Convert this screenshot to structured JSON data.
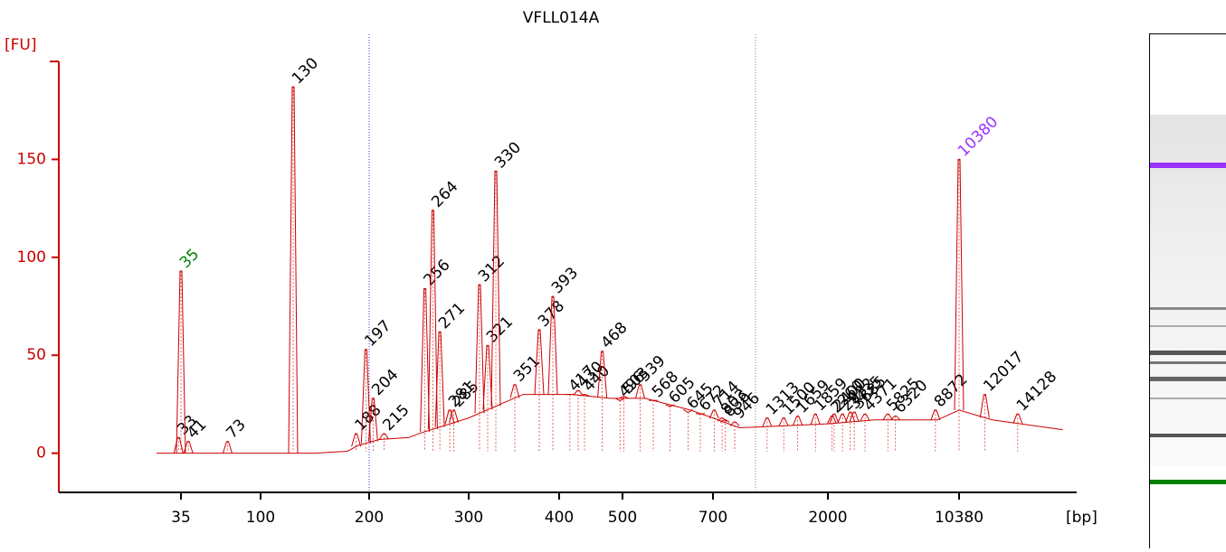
{
  "chart_data": {
    "type": "electropherogram",
    "title": "VFLL014A",
    "y_label": "[FU]",
    "x_label": "[bp]",
    "ylim": [
      -20,
      200
    ],
    "yticks": [
      0,
      50,
      100,
      150
    ],
    "xticks": [
      35,
      100,
      200,
      300,
      400,
      500,
      700,
      2000,
      10380
    ],
    "color": "#cc0000",
    "axis_color": "#cc0000",
    "background": {
      "x": [
        15,
        150,
        180,
        190,
        210,
        240,
        250,
        300,
        360,
        420,
        480,
        550,
        650,
        700,
        1000,
        2000,
        5000,
        9000,
        10380,
        12500,
        17000
      ],
      "values": [
        0,
        0,
        1,
        4,
        7,
        8,
        10,
        18,
        30,
        30,
        28,
        28,
        22,
        18,
        13,
        15,
        17,
        17,
        22,
        17,
        12
      ]
    },
    "peaks": {
      "x": [
        33,
        35,
        41,
        73,
        130,
        188,
        197,
        204,
        215,
        256,
        264,
        271,
        281,
        285,
        312,
        321,
        330,
        351,
        378,
        393,
        417,
        430,
        440,
        468,
        496,
        503,
        539,
        568,
        605,
        645,
        672,
        714,
        803,
        836,
        946,
        1313,
        1500,
        1659,
        1859,
        2260,
        2400,
        2932,
        3435,
        3685,
        4371,
        5825,
        6320,
        8872,
        10380,
        12017,
        14128
      ],
      "values": [
        8,
        93,
        6,
        6,
        187,
        10,
        53,
        28,
        10,
        84,
        124,
        62,
        22,
        22,
        86,
        55,
        144,
        35,
        63,
        80,
        30,
        32,
        30,
        52,
        27,
        29,
        35,
        27,
        24,
        21,
        20,
        22,
        18,
        17,
        16,
        18,
        18,
        19,
        20,
        19,
        20,
        20,
        21,
        21,
        20,
        20,
        19,
        22,
        150,
        30,
        20
      ],
      "label_colors": [
        "#000000",
        "#008000",
        "#000000",
        "#000000",
        "#000000",
        "#000000",
        "#000000",
        "#000000",
        "#000000",
        "#000000",
        "#000000",
        "#000000",
        "#000000",
        "#000000",
        "#000000",
        "#000000",
        "#000000",
        "#000000",
        "#000000",
        "#000000",
        "#000000",
        "#000000",
        "#000000",
        "#000000",
        "#000000",
        "#000000",
        "#000000",
        "#000000",
        "#000000",
        "#000000",
        "#000000",
        "#000000",
        "#000000",
        "#000000",
        "#000000",
        "#000000",
        "#000000",
        "#000000",
        "#000000",
        "#000000",
        "#000000",
        "#000000",
        "#000000",
        "#000000",
        "#000000",
        "#000000",
        "#000000",
        "#000000",
        "#9933ff",
        "#000000",
        "#000000"
      ]
    }
  }
}
